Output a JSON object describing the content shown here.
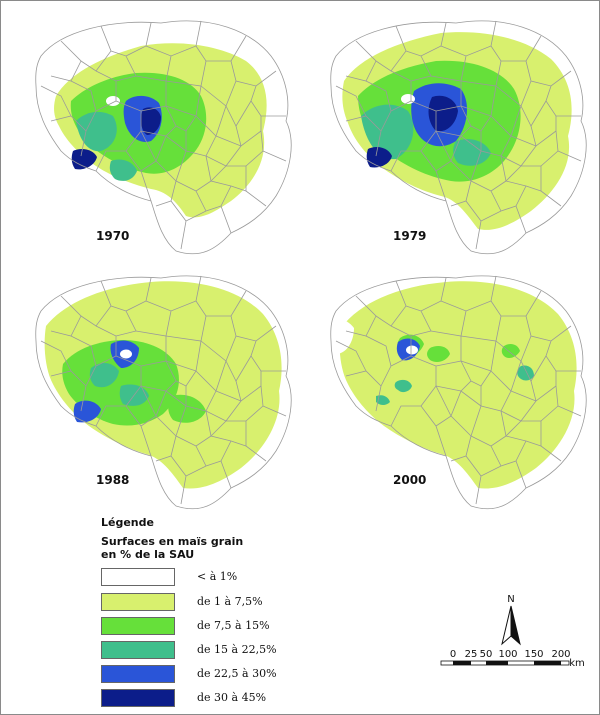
{
  "maps": [
    {
      "year": "1970"
    },
    {
      "year": "1979"
    },
    {
      "year": "1988"
    },
    {
      "year": "2000"
    }
  ],
  "legend": {
    "title": "Légende",
    "subtitle_line1": "Surfaces en maïs grain",
    "subtitle_line2": "en % de la SAU",
    "classes": [
      {
        "label": "< à 1%",
        "color": "#ffffff"
      },
      {
        "label": "de 1 à 7,5%",
        "color": "#d8f06e"
      },
      {
        "label": "de 7,5 à 15%",
        "color": "#66e03a"
      },
      {
        "label": "de 15 à 22,5%",
        "color": "#3fbf8c"
      },
      {
        "label": "de 22,5 à 30%",
        "color": "#2a55d8"
      },
      {
        "label": "de 30 à 45%",
        "color": "#0c1d8a"
      }
    ]
  },
  "scale": {
    "north": "N",
    "ticks": [
      "0",
      "25",
      "50",
      "100",
      "150",
      "200"
    ],
    "unit": "km"
  }
}
